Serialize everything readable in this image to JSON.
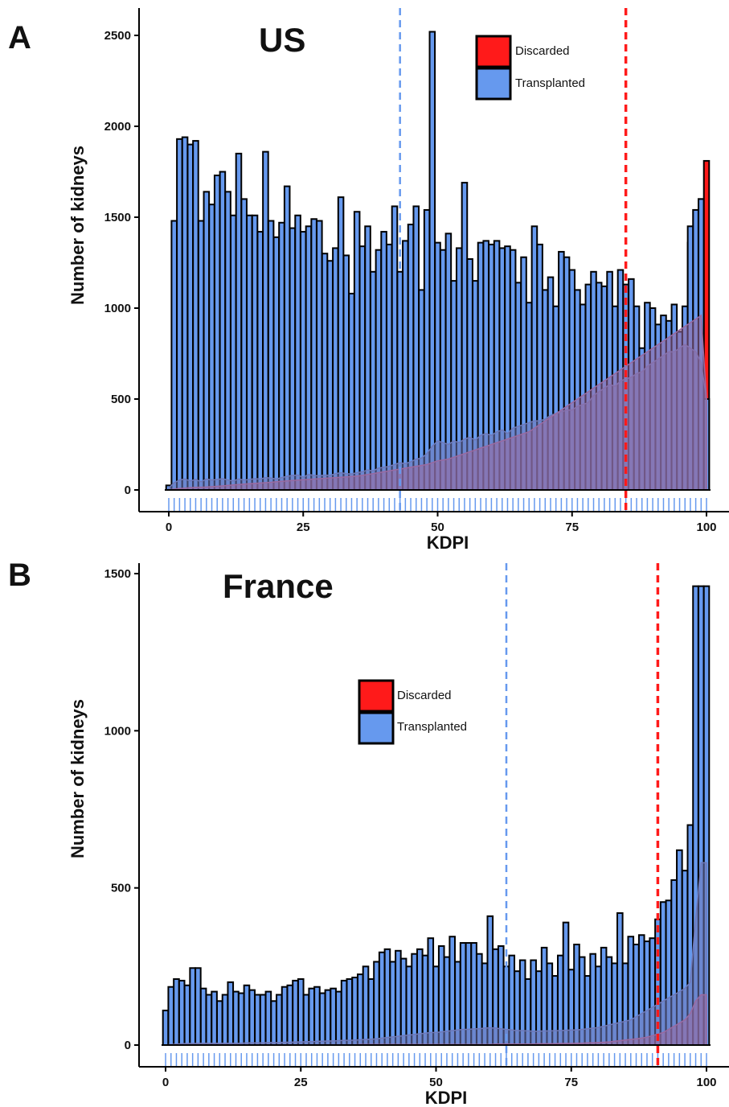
{
  "colors": {
    "discarded": "#ff1a1a",
    "transplanted": "#6699ee",
    "discarded_density": "#9a6aa0",
    "transplanted_density": "#6f79b8",
    "bar_outline": "#000000"
  },
  "chart_data": [
    {
      "type": "bar",
      "panel_label": "A",
      "title": "US",
      "xlabel": "KDPI",
      "ylabel": "Number of kidneys",
      "xlim": [
        0,
        100
      ],
      "ylim": [
        0,
        2500
      ],
      "x_ticks": [
        0,
        25,
        50,
        75,
        100
      ],
      "y_ticks": [
        0,
        500,
        1000,
        1500,
        2000,
        2500
      ],
      "grid": false,
      "legend_position": "top-right",
      "legend": [
        "Discarded",
        "Transplanted"
      ],
      "x": [
        0,
        1,
        2,
        3,
        4,
        5,
        6,
        7,
        8,
        9,
        10,
        11,
        12,
        13,
        14,
        15,
        16,
        17,
        18,
        19,
        20,
        21,
        22,
        23,
        24,
        25,
        26,
        27,
        28,
        29,
        30,
        31,
        32,
        33,
        34,
        35,
        36,
        37,
        38,
        39,
        40,
        41,
        42,
        43,
        44,
        45,
        46,
        47,
        48,
        49,
        50,
        51,
        52,
        53,
        54,
        55,
        56,
        57,
        58,
        59,
        60,
        61,
        62,
        63,
        64,
        65,
        66,
        67,
        68,
        69,
        70,
        71,
        72,
        73,
        74,
        75,
        76,
        77,
        78,
        79,
        80,
        81,
        82,
        83,
        84,
        85,
        86,
        87,
        88,
        89,
        90,
        91,
        92,
        93,
        94,
        95,
        96,
        97,
        98,
        99,
        100
      ],
      "series": [
        {
          "name": "Transplanted",
          "values": [
            25,
            1480,
            1930,
            1940,
            1900,
            1920,
            1480,
            1640,
            1570,
            1730,
            1750,
            1640,
            1510,
            1850,
            1600,
            1510,
            1510,
            1420,
            1860,
            1480,
            1390,
            1470,
            1670,
            1440,
            1510,
            1420,
            1450,
            1490,
            1480,
            1300,
            1260,
            1330,
            1610,
            1290,
            1080,
            1530,
            1340,
            1450,
            1200,
            1320,
            1420,
            1350,
            1560,
            1200,
            1370,
            1460,
            1560,
            1100,
            1540,
            2520,
            1360,
            1320,
            1410,
            1150,
            1330,
            1690,
            1270,
            1150,
            1360,
            1370,
            1350,
            1370,
            1330,
            1340,
            1320,
            1140,
            1280,
            1030,
            1450,
            1350,
            1100,
            1170,
            1010,
            1310,
            1280,
            1210,
            1100,
            1020,
            1130,
            1200,
            1140,
            1120,
            1200,
            1010,
            1210,
            1130,
            1160,
            1010,
            780,
            1030,
            1000,
            910,
            960,
            930,
            1020,
            870,
            1010,
            1450,
            1540,
            1600,
            500
          ],
          "density": [
            10,
            40,
            55,
            60,
            50,
            58,
            45,
            60,
            55,
            58,
            62,
            55,
            50,
            60,
            55,
            58,
            62,
            60,
            68,
            65,
            60,
            68,
            75,
            80,
            82,
            70,
            85,
            80,
            78,
            82,
            80,
            90,
            95,
            90,
            88,
            95,
            100,
            110,
            105,
            120,
            125,
            130,
            140,
            150,
            145,
            155,
            170,
            175,
            200,
            240,
            270,
            260,
            250,
            270,
            260,
            280,
            290,
            275,
            300,
            310,
            300,
            320,
            330,
            310,
            340,
            350,
            360,
            370,
            380,
            380,
            390,
            410,
            420,
            430,
            440,
            440,
            460,
            470,
            480,
            520,
            540,
            560,
            580,
            570,
            600,
            610,
            620,
            640,
            650,
            680,
            700,
            720,
            740,
            760,
            760,
            780,
            800,
            780,
            760,
            700,
            500
          ]
        },
        {
          "name": "Discarded",
          "values": [
            0,
            2,
            4,
            6,
            8,
            10,
            12,
            14,
            16,
            18,
            20,
            22,
            24,
            26,
            28,
            30,
            32,
            34,
            36,
            38,
            40,
            42,
            44,
            46,
            48,
            50,
            52,
            54,
            56,
            58,
            60,
            62,
            64,
            66,
            68,
            70,
            72,
            74,
            76,
            78,
            80,
            82,
            84,
            86,
            88,
            90,
            92,
            94,
            96,
            98,
            100,
            104,
            108,
            112,
            116,
            120,
            124,
            128,
            132,
            136,
            140,
            146,
            152,
            158,
            164,
            170,
            176,
            182,
            188,
            194,
            200,
            208,
            216,
            224,
            232,
            240,
            250,
            260,
            270,
            280,
            290,
            300,
            320,
            340,
            360,
            380,
            400,
            430,
            460,
            500,
            540,
            580,
            620,
            700,
            760,
            820,
            900,
            1360,
            1540,
            1600,
            1810
          ],
          "density": [
            0,
            5,
            8,
            10,
            12,
            14,
            15,
            16,
            18,
            20,
            22,
            25,
            28,
            30,
            32,
            34,
            36,
            38,
            40,
            42,
            45,
            48,
            50,
            52,
            54,
            56,
            58,
            60,
            62,
            64,
            66,
            68,
            70,
            72,
            74,
            76,
            80,
            85,
            90,
            95,
            100,
            105,
            110,
            115,
            120,
            125,
            130,
            135,
            140,
            150,
            160,
            165,
            170,
            180,
            190,
            200,
            210,
            220,
            230,
            240,
            250,
            260,
            270,
            280,
            290,
            300,
            310,
            320,
            340,
            360,
            380,
            400,
            420,
            440,
            460,
            480,
            500,
            520,
            540,
            560,
            580,
            600,
            620,
            640,
            660,
            680,
            700,
            720,
            740,
            760,
            780,
            800,
            820,
            840,
            860,
            880,
            900,
            920,
            940,
            960,
            500
          ]
        }
      ],
      "vlines": [
        {
          "series": "Transplanted",
          "x": 43
        },
        {
          "series": "Discarded",
          "x": 85
        }
      ]
    },
    {
      "type": "bar",
      "panel_label": "B",
      "title": "France",
      "xlabel": "KDPI",
      "ylabel": "Number of kidneys",
      "xlim": [
        0,
        100
      ],
      "ylim": [
        0,
        1500
      ],
      "x_ticks": [
        0,
        25,
        50,
        75,
        100
      ],
      "y_ticks": [
        0,
        500,
        1000,
        1500
      ],
      "grid": false,
      "legend_position": "center",
      "legend": [
        "Discarded",
        "Transplanted"
      ],
      "x": [
        0,
        1,
        2,
        3,
        4,
        5,
        6,
        7,
        8,
        9,
        10,
        11,
        12,
        13,
        14,
        15,
        16,
        17,
        18,
        19,
        20,
        21,
        22,
        23,
        24,
        25,
        26,
        27,
        28,
        29,
        30,
        31,
        32,
        33,
        34,
        35,
        36,
        37,
        38,
        39,
        40,
        41,
        42,
        43,
        44,
        45,
        46,
        47,
        48,
        49,
        50,
        51,
        52,
        53,
        54,
        55,
        56,
        57,
        58,
        59,
        60,
        61,
        62,
        63,
        64,
        65,
        66,
        67,
        68,
        69,
        70,
        71,
        72,
        73,
        74,
        75,
        76,
        77,
        78,
        79,
        80,
        81,
        82,
        83,
        84,
        85,
        86,
        87,
        88,
        89,
        90,
        91,
        92,
        93,
        94,
        95,
        96,
        97,
        98,
        99,
        100
      ],
      "series": [
        {
          "name": "Transplanted",
          "values": [
            110,
            185,
            210,
            205,
            190,
            245,
            245,
            180,
            160,
            170,
            140,
            160,
            200,
            170,
            165,
            190,
            175,
            160,
            160,
            170,
            140,
            160,
            185,
            190,
            205,
            210,
            160,
            180,
            185,
            165,
            175,
            180,
            170,
            205,
            210,
            215,
            225,
            250,
            210,
            265,
            295,
            305,
            265,
            300,
            275,
            250,
            290,
            305,
            285,
            340,
            250,
            315,
            280,
            345,
            265,
            325,
            325,
            325,
            290,
            260,
            410,
            305,
            315,
            250,
            285,
            235,
            270,
            210,
            270,
            235,
            310,
            260,
            220,
            285,
            390,
            240,
            320,
            280,
            220,
            290,
            250,
            310,
            280,
            260,
            420,
            260,
            345,
            320,
            350,
            330,
            340,
            400,
            455,
            460,
            525,
            620,
            555,
            700,
            1460,
            1460,
            1460
          ],
          "density": [
            0,
            2,
            3,
            4,
            5,
            5,
            6,
            6,
            6,
            6,
            6,
            6,
            6,
            6,
            6,
            7,
            7,
            7,
            7,
            8,
            8,
            8,
            9,
            9,
            10,
            10,
            11,
            11,
            12,
            12,
            13,
            13,
            14,
            15,
            15,
            16,
            17,
            18,
            19,
            20,
            22,
            24,
            26,
            28,
            30,
            32,
            34,
            36,
            38,
            40,
            40,
            42,
            44,
            46,
            48,
            50,
            50,
            52,
            52,
            54,
            55,
            54,
            52,
            50,
            48,
            46,
            46,
            45,
            44,
            44,
            45,
            45,
            46,
            46,
            47,
            48,
            48,
            50,
            52,
            54,
            56,
            60,
            64,
            68,
            72,
            76,
            80,
            90,
            100,
            110,
            120,
            130,
            140,
            150,
            160,
            170,
            180,
            200,
            400,
            580,
            580
          ]
        },
        {
          "name": "Discarded",
          "values": [
            0,
            0,
            0,
            0,
            0,
            0,
            0,
            0,
            0,
            0,
            0,
            0,
            0,
            0,
            0,
            0,
            0,
            0,
            0,
            0,
            0,
            0,
            0,
            0,
            0,
            0,
            0,
            0,
            0,
            0,
            0,
            0,
            0,
            0,
            0,
            0,
            0,
            0,
            0,
            0,
            0,
            0,
            0,
            0,
            0,
            0,
            0,
            0,
            0,
            0,
            0,
            0,
            0,
            0,
            0,
            0,
            0,
            0,
            0,
            0,
            0,
            0,
            0,
            0,
            0,
            0,
            0,
            0,
            0,
            0,
            0,
            0,
            0,
            0,
            0,
            0,
            0,
            0,
            0,
            0,
            0,
            0,
            0,
            0,
            0,
            0,
            0,
            0,
            0,
            0,
            0,
            0,
            0,
            0,
            0,
            0,
            0,
            0,
            0,
            0,
            0
          ],
          "density": [
            0,
            1,
            1,
            1,
            1,
            1,
            1,
            1,
            1,
            1,
            1,
            1,
            1,
            1,
            1,
            1,
            1,
            1,
            1,
            1,
            1,
            1,
            1,
            1,
            1,
            1,
            1,
            1,
            1,
            1,
            1,
            1,
            1,
            1,
            1,
            1,
            2,
            2,
            2,
            2,
            2,
            2,
            2,
            2,
            2,
            2,
            2,
            2,
            2,
            2,
            2,
            2,
            2,
            2,
            2,
            2,
            2,
            2,
            2,
            2,
            2,
            3,
            3,
            3,
            3,
            3,
            3,
            3,
            3,
            4,
            4,
            4,
            4,
            5,
            5,
            5,
            6,
            6,
            7,
            7,
            8,
            9,
            10,
            12,
            14,
            16,
            18,
            20,
            22,
            25,
            30,
            35,
            40,
            50,
            60,
            70,
            80,
            100,
            140,
            160,
            160
          ]
        }
      ],
      "vlines": [
        {
          "series": "Transplanted",
          "x": 63
        },
        {
          "series": "Discarded",
          "x": 91
        }
      ]
    }
  ]
}
